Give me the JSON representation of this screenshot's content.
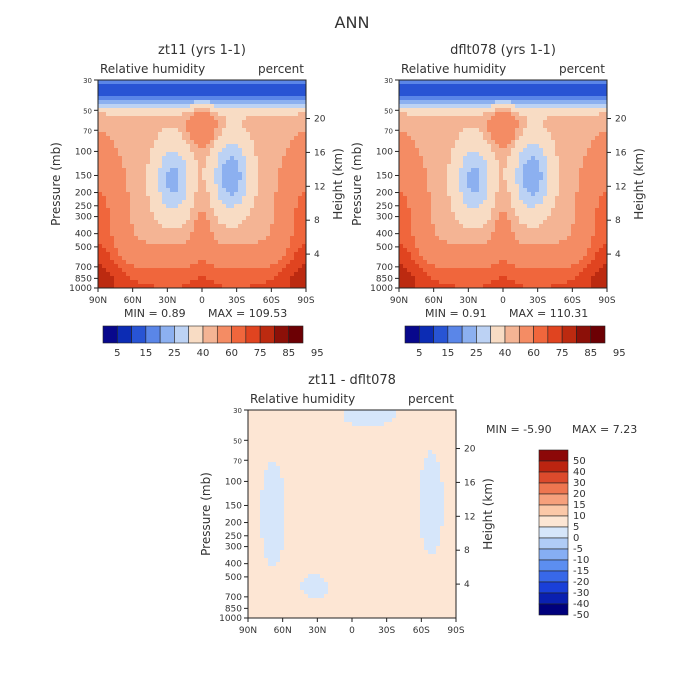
{
  "page_title": "ANN",
  "panels": [
    {
      "title": "zt11 (yrs 1-1)",
      "left_label": "Relative humidity",
      "right_label": "percent",
      "min_text": "MIN =    0.89",
      "max_text": "MAX = 109.53"
    },
    {
      "title": "dflt078 (yrs 1-1)",
      "left_label": "Relative humidity",
      "right_label": "percent",
      "min_text": "MIN =    0.91",
      "max_text": "MAX = 110.31"
    },
    {
      "title": "zt11 - dflt078",
      "left_label": "Relative humidity",
      "right_label": "percent",
      "min_text": "MIN =   -5.90",
      "max_text": "MAX =    7.23"
    }
  ],
  "axes": {
    "pressure_label": "Pressure (mb)",
    "height_label": "Height (km)",
    "pressure_ticks": [
      "30",
      "50",
      "70",
      "100",
      "150",
      "200",
      "250",
      "300",
      "400",
      "500",
      "700",
      "850",
      "1000"
    ],
    "height_ticks": [
      "20",
      "16",
      "12",
      "8",
      "4"
    ],
    "lat_ticks": [
      "90N",
      "60N",
      "30N",
      "0",
      "30S",
      "60S",
      "90S"
    ]
  },
  "colors": {
    "abs_scale": [
      "#08088c",
      "#0c2cb4",
      "#2854d4",
      "#5a86e8",
      "#8cb0f0",
      "#bcd2f4",
      "#f8dcc4",
      "#f4b494",
      "#f48c64",
      "#f0663c",
      "#e04420",
      "#bc2a10",
      "#8c1008",
      "#6c0004"
    ],
    "diff_scale": [
      "#00007c",
      "#0a20b0",
      "#1a40d8",
      "#3868e8",
      "#5c8ef0",
      "#86aef4",
      "#b0ccf6",
      "#d6e6fa",
      "#fde6d4",
      "#fbc8a8",
      "#f6a07c",
      "#ee7650",
      "#dc4a2c",
      "#bc2410",
      "#8c0808"
    ]
  },
  "chart_data": [
    {
      "type": "heatmap",
      "title": "zt11 (yrs 1-1)",
      "subtitle": "Relative humidity",
      "units": "percent",
      "xlabel": "",
      "ylabel": "Pressure (mb)",
      "y2label": "Height (km)",
      "x_ticks": [
        "90N",
        "60N",
        "30N",
        "0",
        "30S",
        "60S",
        "90S"
      ],
      "y_ticks": [
        30,
        50,
        70,
        100,
        150,
        200,
        250,
        300,
        400,
        500,
        700,
        850,
        1000
      ],
      "y2_ticks": [
        20,
        16,
        12,
        8,
        4
      ],
      "min": 0.89,
      "max": 109.53,
      "colorbar_labels": [
        "5",
        "15",
        "25",
        "40",
        "60",
        "75",
        "85",
        "95"
      ]
    },
    {
      "type": "heatmap",
      "title": "dflt078 (yrs 1-1)",
      "subtitle": "Relative humidity",
      "units": "percent",
      "xlabel": "",
      "ylabel": "Pressure (mb)",
      "y2label": "Height (km)",
      "x_ticks": [
        "90N",
        "60N",
        "30N",
        "0",
        "30S",
        "60S",
        "90S"
      ],
      "y_ticks": [
        30,
        50,
        70,
        100,
        150,
        200,
        250,
        300,
        400,
        500,
        700,
        850,
        1000
      ],
      "y2_ticks": [
        20,
        16,
        12,
        8,
        4
      ],
      "min": 0.91,
      "max": 110.31,
      "colorbar_labels": [
        "5",
        "15",
        "25",
        "40",
        "60",
        "75",
        "85",
        "95"
      ]
    },
    {
      "type": "heatmap",
      "title": "zt11 - dflt078",
      "subtitle": "Relative humidity",
      "units": "percent",
      "xlabel": "",
      "ylabel": "Pressure (mb)",
      "y2label": "Height (km)",
      "x_ticks": [
        "90N",
        "60N",
        "30N",
        "0",
        "30S",
        "60S",
        "90S"
      ],
      "y_ticks": [
        30,
        50,
        70,
        100,
        150,
        200,
        250,
        300,
        400,
        500,
        700,
        850,
        1000
      ],
      "y2_ticks": [
        20,
        16,
        12,
        8,
        4
      ],
      "min": -5.9,
      "max": 7.23,
      "colorbar_labels": [
        "50",
        "40",
        "30",
        "20",
        "15",
        "10",
        "5",
        "0",
        "-5",
        "-10",
        "-15",
        "-20",
        "-30",
        "-40",
        "-50"
      ]
    }
  ]
}
